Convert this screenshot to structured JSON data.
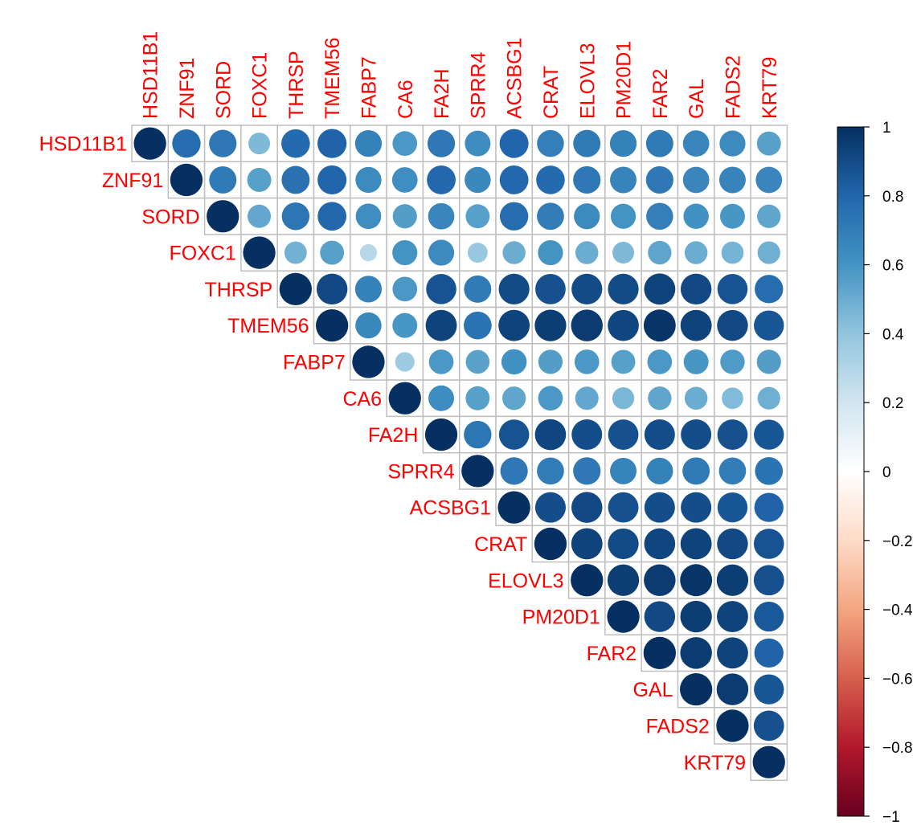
{
  "chart_data": {
    "type": "heatmap",
    "style": "circle",
    "layout": "upper-triangle",
    "genes": [
      "HSD11B1",
      "ZNF91",
      "SORD",
      "FOXC1",
      "THRSP",
      "TMEM56",
      "FABP7",
      "CA6",
      "FA2H",
      "SPRR4",
      "ACSBG1",
      "CRAT",
      "ELOVL3",
      "PM20D1",
      "FAR2",
      "GAL",
      "FADS2",
      "KRT79"
    ],
    "matrix": [
      [
        1.0,
        0.77,
        0.72,
        0.45,
        0.78,
        0.81,
        0.68,
        0.58,
        0.72,
        0.63,
        0.8,
        0.69,
        0.71,
        0.68,
        0.71,
        0.66,
        0.64,
        0.55
      ],
      [
        null,
        1.0,
        0.71,
        0.55,
        0.75,
        0.8,
        0.64,
        0.62,
        0.79,
        0.65,
        0.79,
        0.78,
        0.72,
        0.67,
        0.72,
        0.66,
        0.67,
        0.66
      ],
      [
        null,
        null,
        1.0,
        0.52,
        0.73,
        0.79,
        0.62,
        0.56,
        0.66,
        0.55,
        0.77,
        0.7,
        0.64,
        0.6,
        0.69,
        0.61,
        0.59,
        0.53
      ],
      [
        null,
        null,
        null,
        1.0,
        0.48,
        0.55,
        0.28,
        0.6,
        0.64,
        0.38,
        0.5,
        0.6,
        0.5,
        0.45,
        0.53,
        0.5,
        0.47,
        0.49
      ],
      [
        null,
        null,
        null,
        null,
        1.0,
        0.91,
        0.68,
        0.58,
        0.87,
        0.71,
        0.9,
        0.88,
        0.9,
        0.9,
        0.93,
        0.91,
        0.87,
        0.77
      ],
      [
        null,
        null,
        null,
        null,
        null,
        1.0,
        0.65,
        0.59,
        0.93,
        0.74,
        0.93,
        0.95,
        0.96,
        0.92,
        0.98,
        0.93,
        0.91,
        0.86
      ],
      [
        null,
        null,
        null,
        null,
        null,
        null,
        1.0,
        0.36,
        0.58,
        0.54,
        0.61,
        0.56,
        0.58,
        0.55,
        0.58,
        0.59,
        0.57,
        0.56
      ],
      [
        null,
        null,
        null,
        null,
        null,
        null,
        null,
        1.0,
        0.63,
        0.55,
        0.53,
        0.58,
        0.52,
        0.46,
        0.53,
        0.5,
        0.44,
        0.49
      ],
      [
        null,
        null,
        null,
        null,
        null,
        null,
        null,
        null,
        1.0,
        0.73,
        0.87,
        0.92,
        0.89,
        0.88,
        0.89,
        0.89,
        0.88,
        0.86
      ],
      [
        null,
        null,
        null,
        null,
        null,
        null,
        null,
        null,
        null,
        1.0,
        0.72,
        0.7,
        0.72,
        0.67,
        0.68,
        0.71,
        0.7,
        0.74
      ],
      [
        null,
        null,
        null,
        null,
        null,
        null,
        null,
        null,
        null,
        null,
        1.0,
        0.89,
        0.91,
        0.88,
        0.89,
        0.89,
        0.86,
        0.81
      ],
      [
        null,
        null,
        null,
        null,
        null,
        null,
        null,
        null,
        null,
        null,
        null,
        1.0,
        0.93,
        0.9,
        0.92,
        0.93,
        0.91,
        0.87
      ],
      [
        null,
        null,
        null,
        null,
        null,
        null,
        null,
        null,
        null,
        null,
        null,
        null,
        1.0,
        0.95,
        0.96,
        0.98,
        0.95,
        0.88
      ],
      [
        null,
        null,
        null,
        null,
        null,
        null,
        null,
        null,
        null,
        null,
        null,
        null,
        null,
        1.0,
        0.91,
        0.95,
        0.93,
        0.85
      ],
      [
        null,
        null,
        null,
        null,
        null,
        null,
        null,
        null,
        null,
        null,
        null,
        null,
        null,
        null,
        1.0,
        0.96,
        0.93,
        0.81
      ],
      [
        null,
        null,
        null,
        null,
        null,
        null,
        null,
        null,
        null,
        null,
        null,
        null,
        null,
        null,
        null,
        1.0,
        0.96,
        0.86
      ],
      [
        null,
        null,
        null,
        null,
        null,
        null,
        null,
        null,
        null,
        null,
        null,
        null,
        null,
        null,
        null,
        null,
        1.0,
        0.88
      ],
      [
        null,
        null,
        null,
        null,
        null,
        null,
        null,
        null,
        null,
        null,
        null,
        null,
        null,
        null,
        null,
        null,
        null,
        1.0
      ]
    ],
    "colorbar": {
      "range": [
        -1,
        1
      ],
      "ticks": [
        1,
        0.8,
        0.6,
        0.4,
        0.2,
        0,
        -0.2,
        -0.4,
        -0.6,
        -0.8,
        -1
      ],
      "tick_labels": [
        "1",
        "0.8",
        "0.6",
        "0.4",
        "0.2",
        "0",
        "−0.2",
        "−0.4",
        "−0.6",
        "−0.8",
        "−1"
      ],
      "colors": [
        "#67001F",
        "#B2182B",
        "#D6604D",
        "#F4A582",
        "#FDDBC7",
        "#FFFFFF",
        "#D1E5F0",
        "#92C5DE",
        "#4393C3",
        "#2166AC",
        "#053061"
      ]
    },
    "label_color": "#FF0000",
    "grid_color": "#BEBEBE"
  }
}
